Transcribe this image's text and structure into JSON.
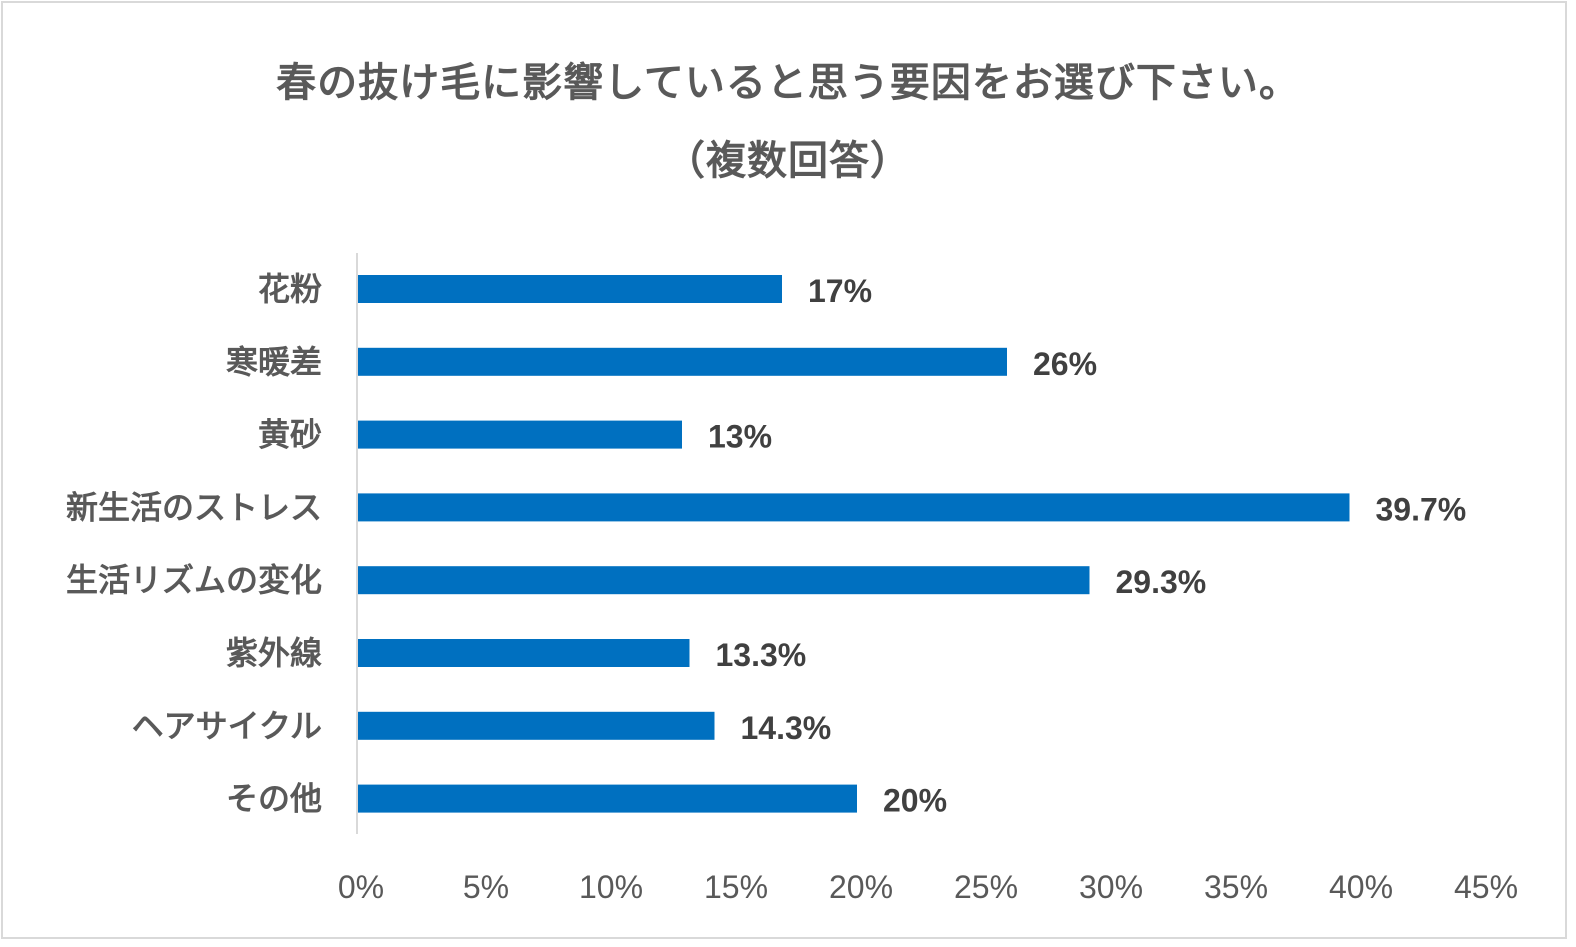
{
  "chart_data": {
    "type": "bar",
    "orientation": "horizontal",
    "title_line1": "春の抜け毛に影響していると思う要因をお選び下さい。",
    "title_line2": "（複数回答）",
    "categories": [
      "花粉",
      "寒暖差",
      "黄砂",
      "新生活のストレス",
      "生活リズムの変化",
      "紫外線",
      "ヘアサイクル",
      "その他"
    ],
    "values": [
      17,
      26,
      13,
      39.7,
      29.3,
      13.3,
      14.3,
      20
    ],
    "data_labels": [
      "17%",
      "26%",
      "13%",
      "39.7%",
      "29.3%",
      "13.3%",
      "14.3%",
      "20%"
    ],
    "xlim": [
      0,
      45
    ],
    "xticks": [
      0,
      5,
      10,
      15,
      20,
      25,
      30,
      35,
      40,
      45
    ],
    "xtick_labels": [
      "0%",
      "5%",
      "10%",
      "15%",
      "20%",
      "25%",
      "30%",
      "35%",
      "40%",
      "45%"
    ],
    "xlabel": "",
    "ylabel": "",
    "grid": false,
    "legend": "none",
    "bar_color": "#0070c0",
    "axis_color": "#d9d9d9"
  }
}
